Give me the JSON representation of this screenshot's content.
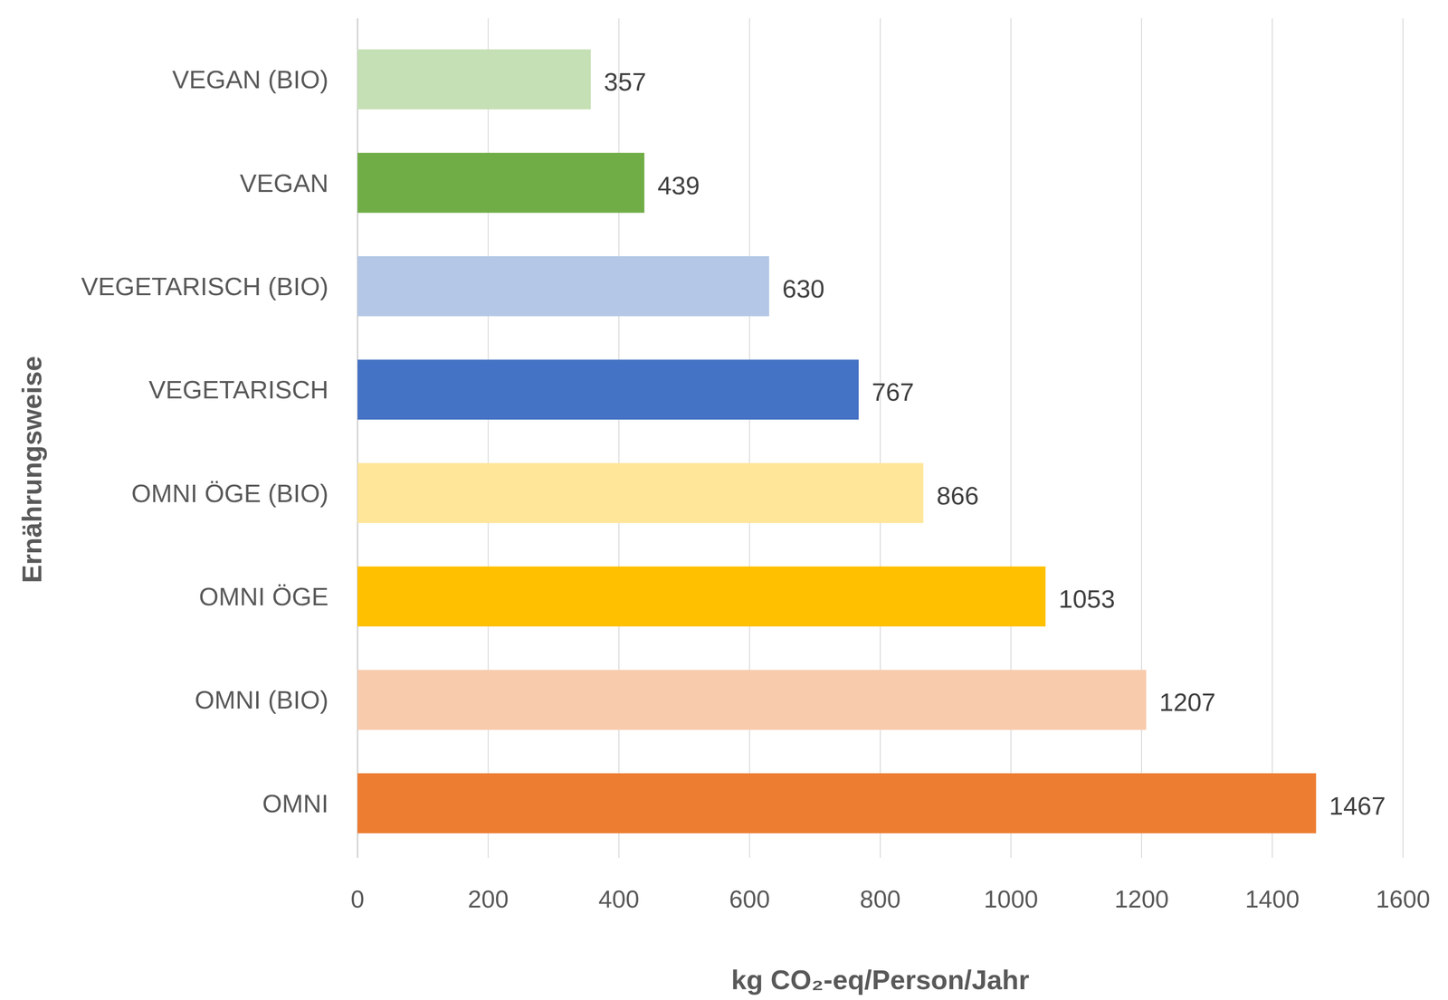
{
  "chart_data": {
    "type": "bar",
    "orientation": "horizontal",
    "categories": [
      "VEGAN (BIO)",
      "VEGAN",
      "VEGETARISCH (BIO)",
      "VEGETARISCH",
      "OMNI ÖGE (BIO)",
      "OMNI ÖGE",
      "OMNI (BIO)",
      "OMNI"
    ],
    "values": [
      357,
      439,
      630,
      767,
      866,
      1053,
      1207,
      1467
    ],
    "colors": [
      "#C5E0B4",
      "#70AD47",
      "#B4C7E7",
      "#4472C4",
      "#FFE699",
      "#FFC000",
      "#F8CBAD",
      "#ED7D31"
    ],
    "xlabel": "kg CO₂-eq/Person/Jahr",
    "ylabel": "Ernährungsweise",
    "xlim": [
      0,
      1600
    ],
    "xticks": [
      0,
      200,
      400,
      600,
      800,
      1000,
      1200,
      1400,
      1600
    ],
    "grid": true,
    "data_labels": true
  }
}
